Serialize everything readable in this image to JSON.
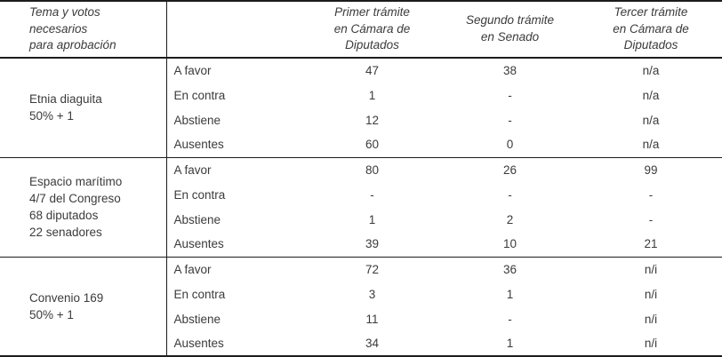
{
  "table": {
    "header": {
      "tema": "Tema y votos necesarios\npara aprobación",
      "primer": "Primer trámite\nen Cámara de\nDiputados",
      "segundo": "Segundo trámite\nen Senado",
      "tercer": "Tercer trámite\nen Cámara de\nDiputados"
    },
    "groups": [
      {
        "tema": "Etnia diaguita\n50% + 1",
        "rows": [
          {
            "label": "A favor",
            "primer": "47",
            "segundo": "38",
            "tercer": "n/a"
          },
          {
            "label": "En contra",
            "primer": "1",
            "segundo": "-",
            "tercer": "n/a"
          },
          {
            "label": "Abstiene",
            "primer": "12",
            "segundo": "-",
            "tercer": "n/a"
          },
          {
            "label": "Ausentes",
            "primer": "60",
            "segundo": "0",
            "tercer": "n/a"
          }
        ]
      },
      {
        "tema": "Espacio marítimo\n4/7 del Congreso\n68 diputados\n22 senadores",
        "rows": [
          {
            "label": "A favor",
            "primer": "80",
            "segundo": "26",
            "tercer": "99"
          },
          {
            "label": "En contra",
            "primer": "-",
            "segundo": "-",
            "tercer": "-"
          },
          {
            "label": "Abstiene",
            "primer": "1",
            "segundo": "2",
            "tercer": "-"
          },
          {
            "label": "Ausentes",
            "primer": "39",
            "segundo": "10",
            "tercer": "21"
          }
        ]
      },
      {
        "tema": "Convenio 169\n50% + 1",
        "rows": [
          {
            "label": "A favor",
            "primer": "72",
            "segundo": "36",
            "tercer": "n/i"
          },
          {
            "label": "En contra",
            "primer": "3",
            "segundo": "1",
            "tercer": "n/i"
          },
          {
            "label": "Abstiene",
            "primer": "11",
            "segundo": "-",
            "tercer": "n/i"
          },
          {
            "label": "Ausentes",
            "primer": "34",
            "segundo": "1",
            "tercer": "n/i"
          }
        ]
      }
    ]
  }
}
